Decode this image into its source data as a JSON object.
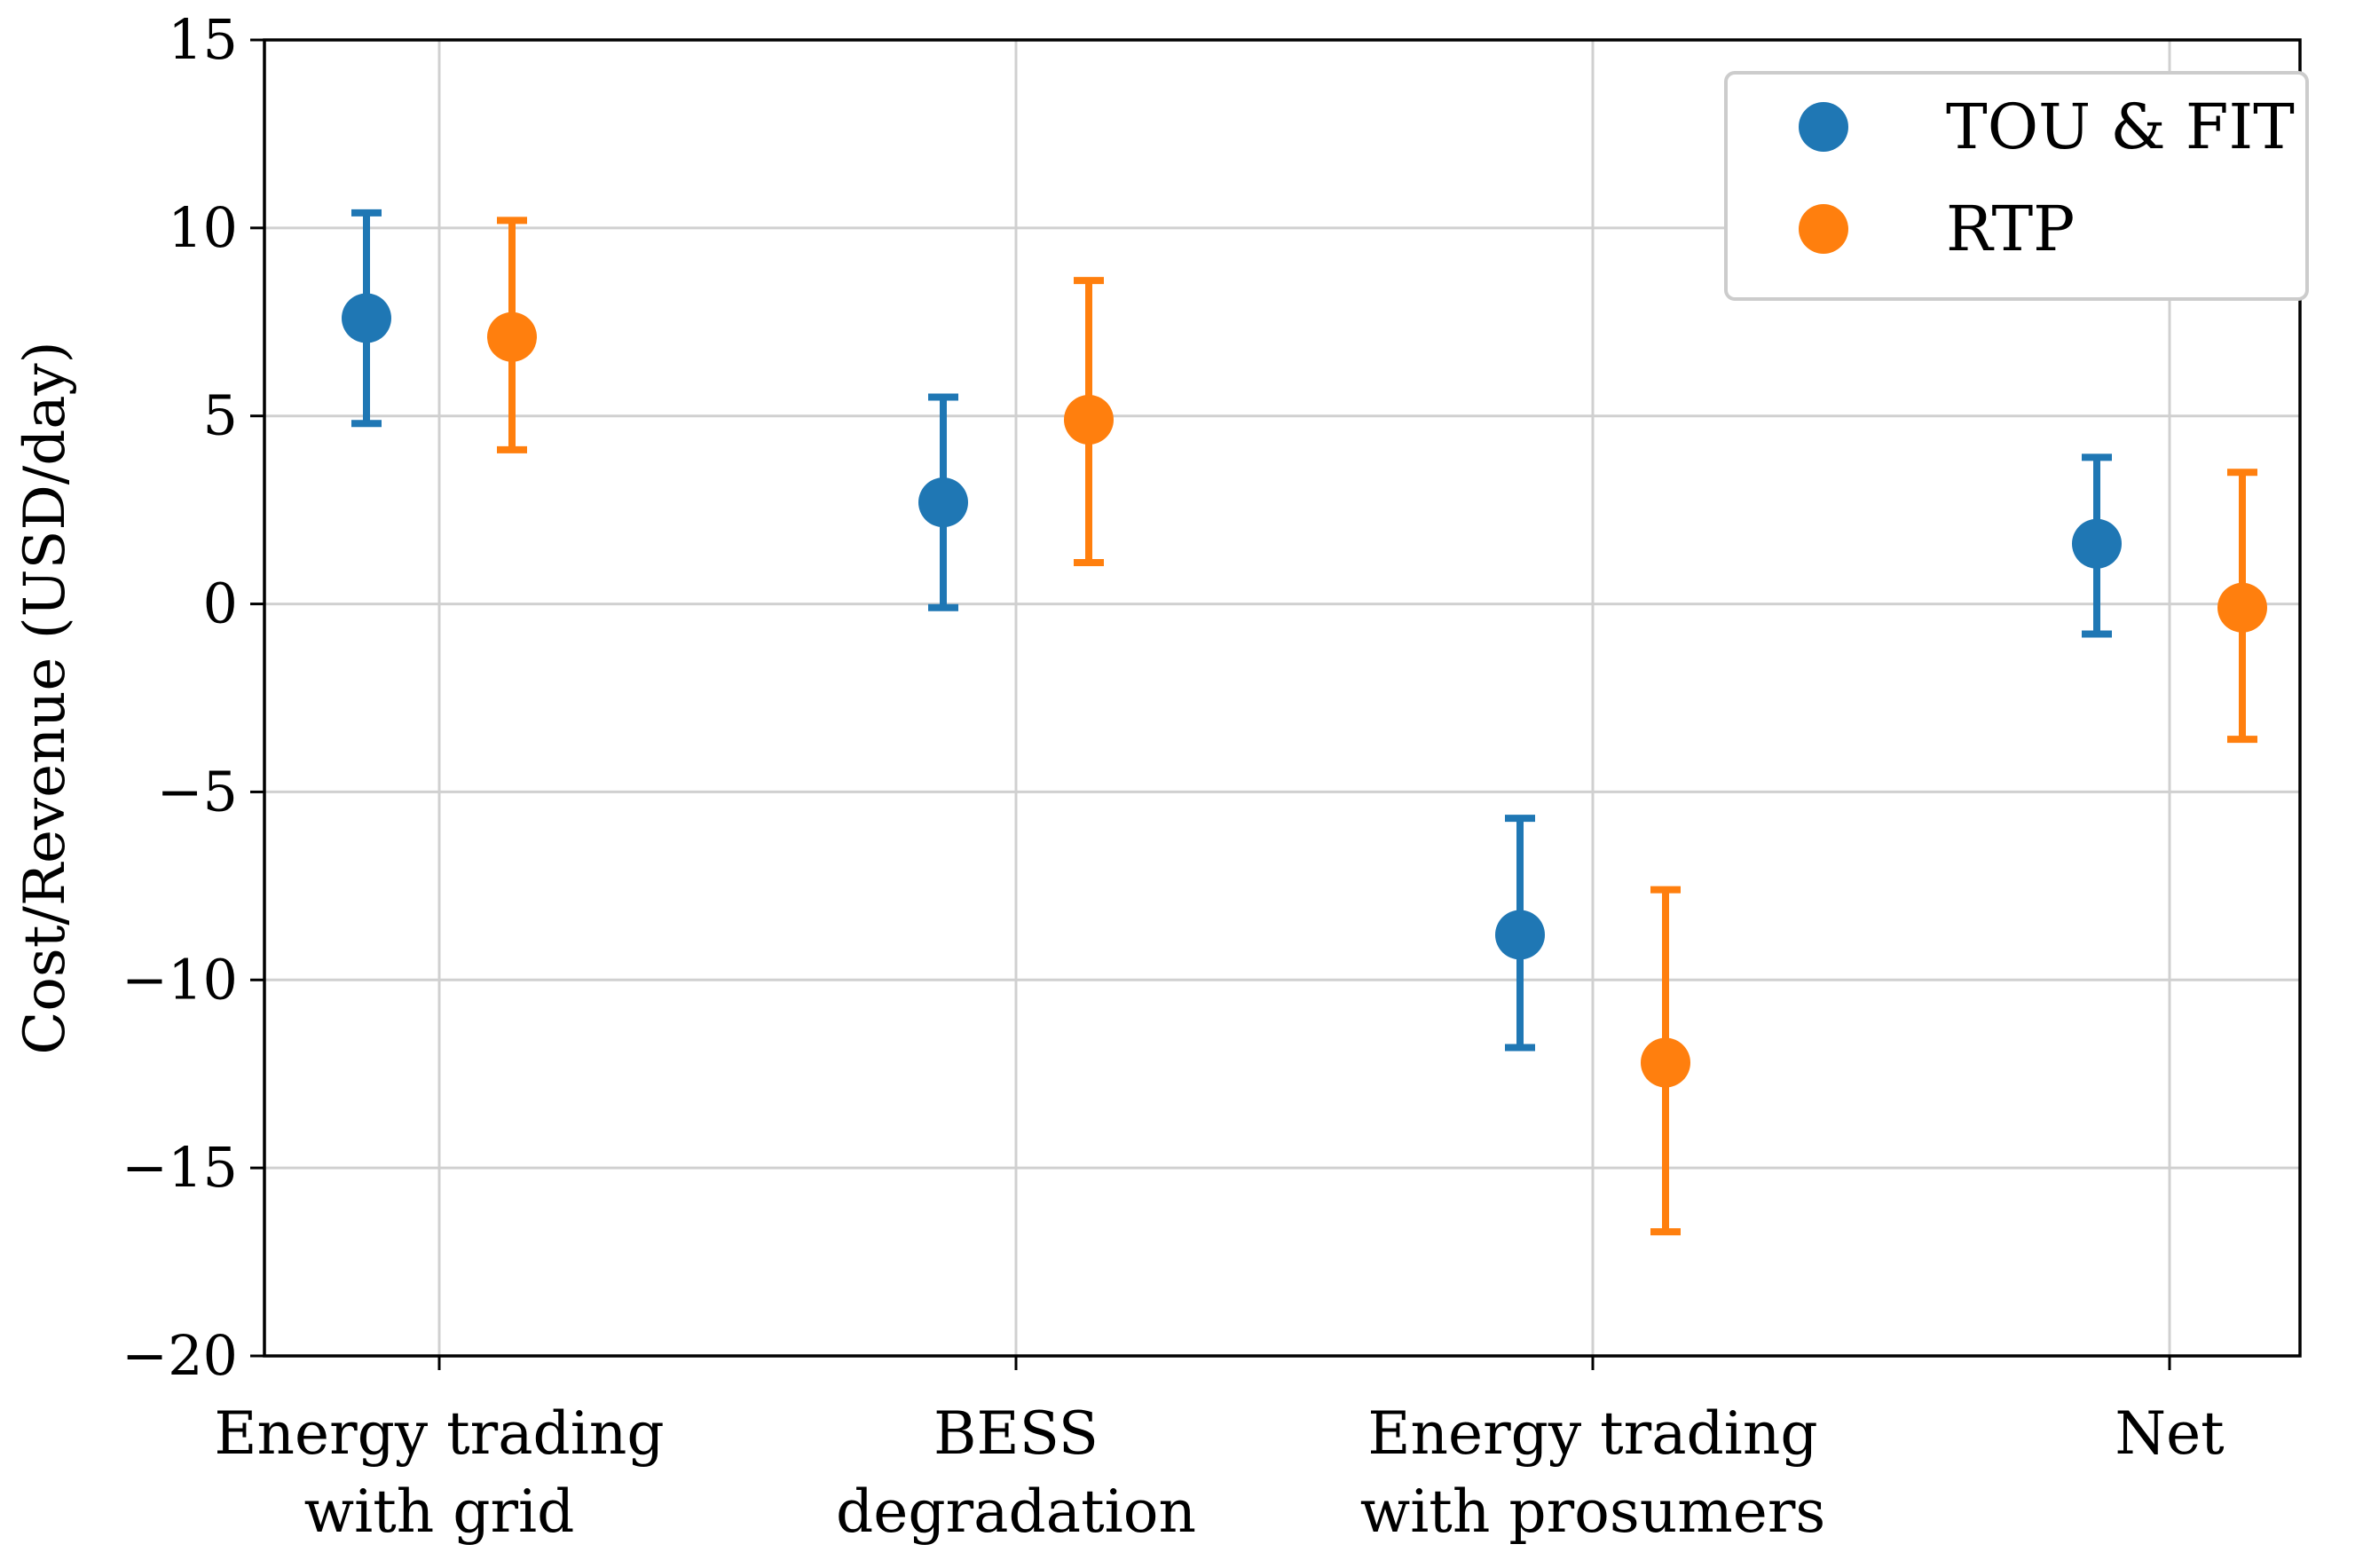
{
  "chart_data": {
    "type": "scatter",
    "subtype": "errorbar",
    "title": "",
    "xlabel": "",
    "ylabel": "Cost/Revenue (USD/day)",
    "categories": [
      [
        "Energy trading",
        "with grid"
      ],
      [
        "BESS",
        "degradation"
      ],
      [
        "Energy trading",
        "with prosumers"
      ],
      [
        "Net"
      ]
    ],
    "ylim": [
      -20,
      15
    ],
    "yticks": [
      15,
      10,
      5,
      0,
      -5,
      -10,
      -15,
      -20
    ],
    "ytick_labels": [
      "15",
      "10",
      "5",
      "0",
      "−5",
      "−10",
      "−15",
      "−20"
    ],
    "grid": true,
    "legend_position": "top-right",
    "series": [
      {
        "name": "TOU & FIT",
        "color": "#1f77b4",
        "values": [
          7.6,
          2.7,
          -8.8,
          1.6
        ],
        "lower": [
          4.8,
          -0.1,
          -11.8,
          -0.8
        ],
        "upper": [
          10.4,
          5.5,
          -5.7,
          3.9
        ]
      },
      {
        "name": "RTP",
        "color": "#ff7f0e",
        "values": [
          7.1,
          4.9,
          -12.2,
          -0.1
        ],
        "lower": [
          4.1,
          1.1,
          -16.7,
          -3.6
        ],
        "upper": [
          10.2,
          8.6,
          -7.6,
          3.5
        ]
      }
    ]
  }
}
